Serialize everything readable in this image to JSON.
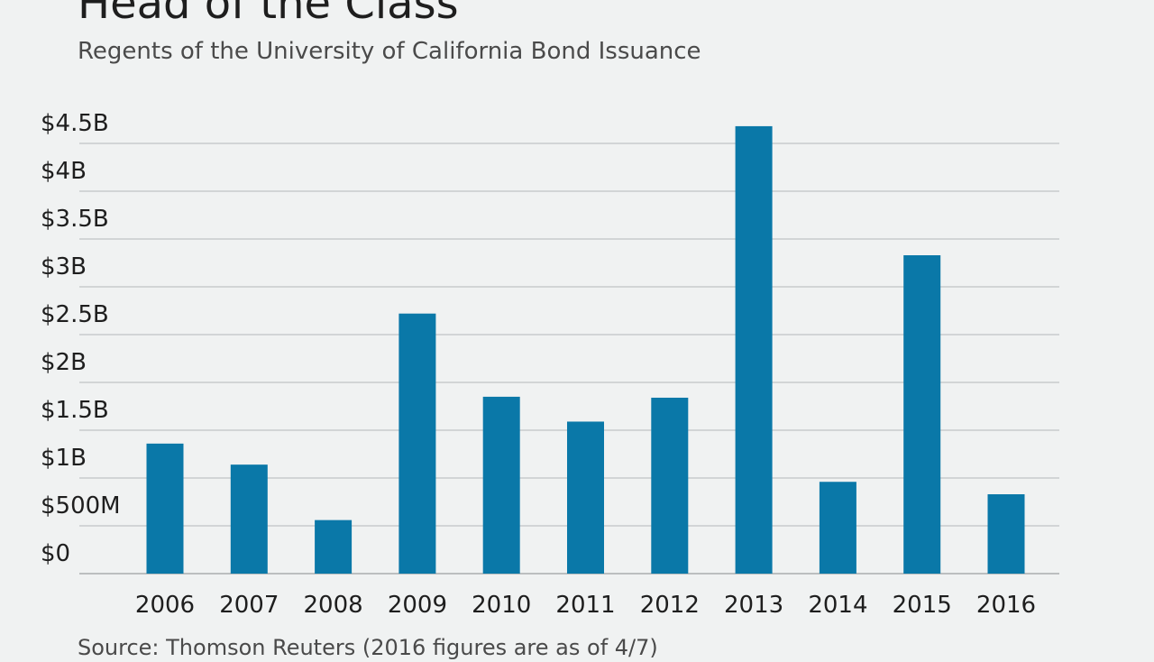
{
  "title": "Head of the Class",
  "subtitle": "Regents of the University of California Bond Issuance",
  "source": "Source: Thomson Reuters (2016 figures are as of 4/7)",
  "colors": {
    "bar": "#0a78a8",
    "grid": "#c8cbcc",
    "text": "#1e1e1e"
  },
  "chart_data": {
    "type": "bar",
    "categories": [
      "2006",
      "2007",
      "2008",
      "2009",
      "2010",
      "2011",
      "2012",
      "2013",
      "2014",
      "2015",
      "2016"
    ],
    "values": [
      1.36,
      1.14,
      0.56,
      2.72,
      1.85,
      1.59,
      1.84,
      4.68,
      0.96,
      3.33,
      0.83
    ],
    "unit": "billions USD",
    "ylim": [
      0,
      4.5
    ],
    "y_ticks": [
      {
        "value": 0,
        "label": "$0"
      },
      {
        "value": 0.5,
        "label": "$500M"
      },
      {
        "value": 1,
        "label": "$1B"
      },
      {
        "value": 1.5,
        "label": "$1.5B"
      },
      {
        "value": 2,
        "label": "$2B"
      },
      {
        "value": 2.5,
        "label": "$2.5B"
      },
      {
        "value": 3,
        "label": "$3B"
      },
      {
        "value": 3.5,
        "label": "$3.5B"
      },
      {
        "value": 4,
        "label": "$4B"
      },
      {
        "value": 4.5,
        "label": "$4.5B"
      }
    ],
    "grid": true,
    "legend": "none"
  }
}
